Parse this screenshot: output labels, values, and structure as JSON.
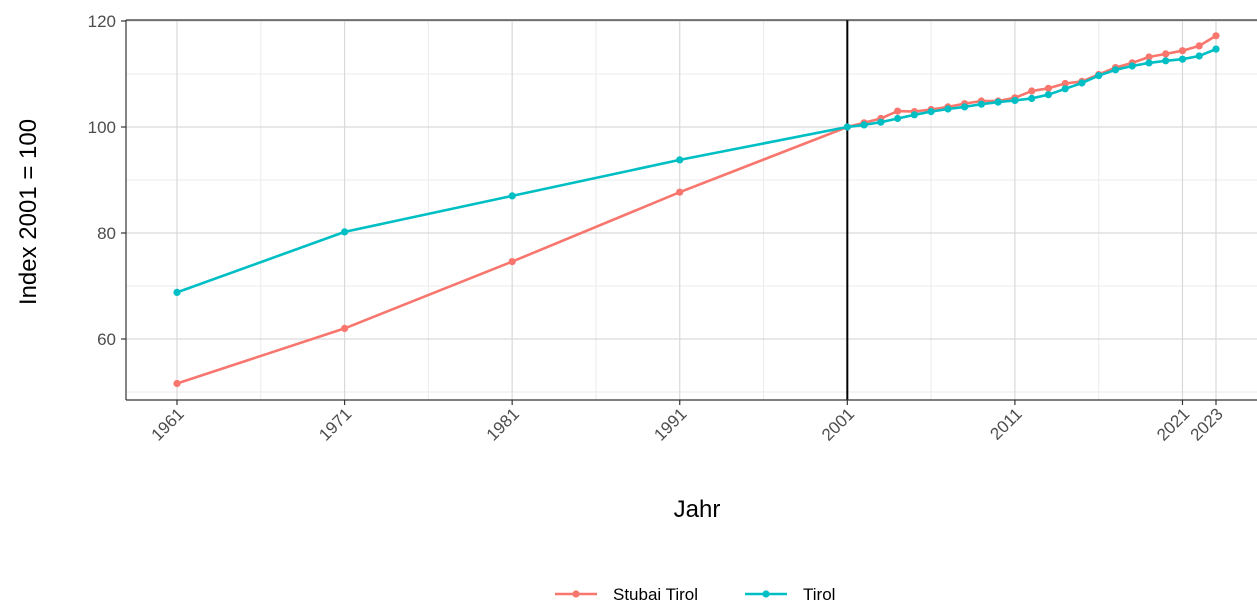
{
  "chart_data": {
    "type": "line",
    "xlabel": "Jahr",
    "ylabel": "Index 2001 = 100",
    "xlim": [
      1958,
      1974.3
    ],
    "ylim": [
      48.5,
      120
    ],
    "y_ticks": [
      60,
      80,
      100,
      120
    ],
    "x_ticks": [
      1961,
      1971,
      1981,
      1991,
      2001,
      2011,
      2021,
      2023
    ],
    "x_ticks_note": "",
    "vline_x": 2001,
    "grid": true,
    "legend_position": "bottom",
    "series": [
      {
        "name": "Stubai Tirol",
        "color": "#F8766D",
        "points": [
          [
            1961,
            51.6
          ],
          [
            1971,
            62.0
          ],
          [
            1981,
            74.6
          ],
          [
            1991,
            87.7
          ],
          [
            2001,
            100.0
          ],
          [
            2002,
            100.8
          ],
          [
            2003,
            101.6
          ],
          [
            2004,
            103.0
          ],
          [
            2005,
            102.9
          ],
          [
            2006,
            103.3
          ],
          [
            2007,
            103.8
          ],
          [
            2008,
            104.4
          ],
          [
            2009,
            104.9
          ],
          [
            2010,
            104.9
          ],
          [
            2011,
            105.5
          ],
          [
            2012,
            106.8
          ],
          [
            2013,
            107.3
          ],
          [
            2014,
            108.2
          ],
          [
            2015,
            108.6
          ],
          [
            2016,
            109.9
          ],
          [
            2017,
            111.2
          ],
          [
            2018,
            112.1
          ],
          [
            2019,
            113.2
          ],
          [
            2020,
            113.8
          ],
          [
            2021,
            114.4
          ],
          [
            2022,
            115.3
          ],
          [
            2023,
            117.2
          ]
        ]
      },
      {
        "name": "Tirol",
        "color": "#00BFC4",
        "points": [
          [
            1961,
            68.8
          ],
          [
            1971,
            80.2
          ],
          [
            1981,
            87.0
          ],
          [
            1991,
            93.8
          ],
          [
            2001,
            100.0
          ],
          [
            2002,
            100.4
          ],
          [
            2003,
            100.9
          ],
          [
            2004,
            101.6
          ],
          [
            2005,
            102.3
          ],
          [
            2006,
            102.9
          ],
          [
            2007,
            103.4
          ],
          [
            2008,
            103.8
          ],
          [
            2009,
            104.3
          ],
          [
            2010,
            104.7
          ],
          [
            2011,
            105.0
          ],
          [
            2012,
            105.4
          ],
          [
            2013,
            106.1
          ],
          [
            2014,
            107.2
          ],
          [
            2015,
            108.3
          ],
          [
            2016,
            109.7
          ],
          [
            2017,
            110.8
          ],
          [
            2018,
            111.5
          ],
          [
            2019,
            112.1
          ],
          [
            2020,
            112.5
          ],
          [
            2021,
            112.8
          ],
          [
            2022,
            113.4
          ],
          [
            2023,
            114.7
          ]
        ]
      }
    ]
  }
}
